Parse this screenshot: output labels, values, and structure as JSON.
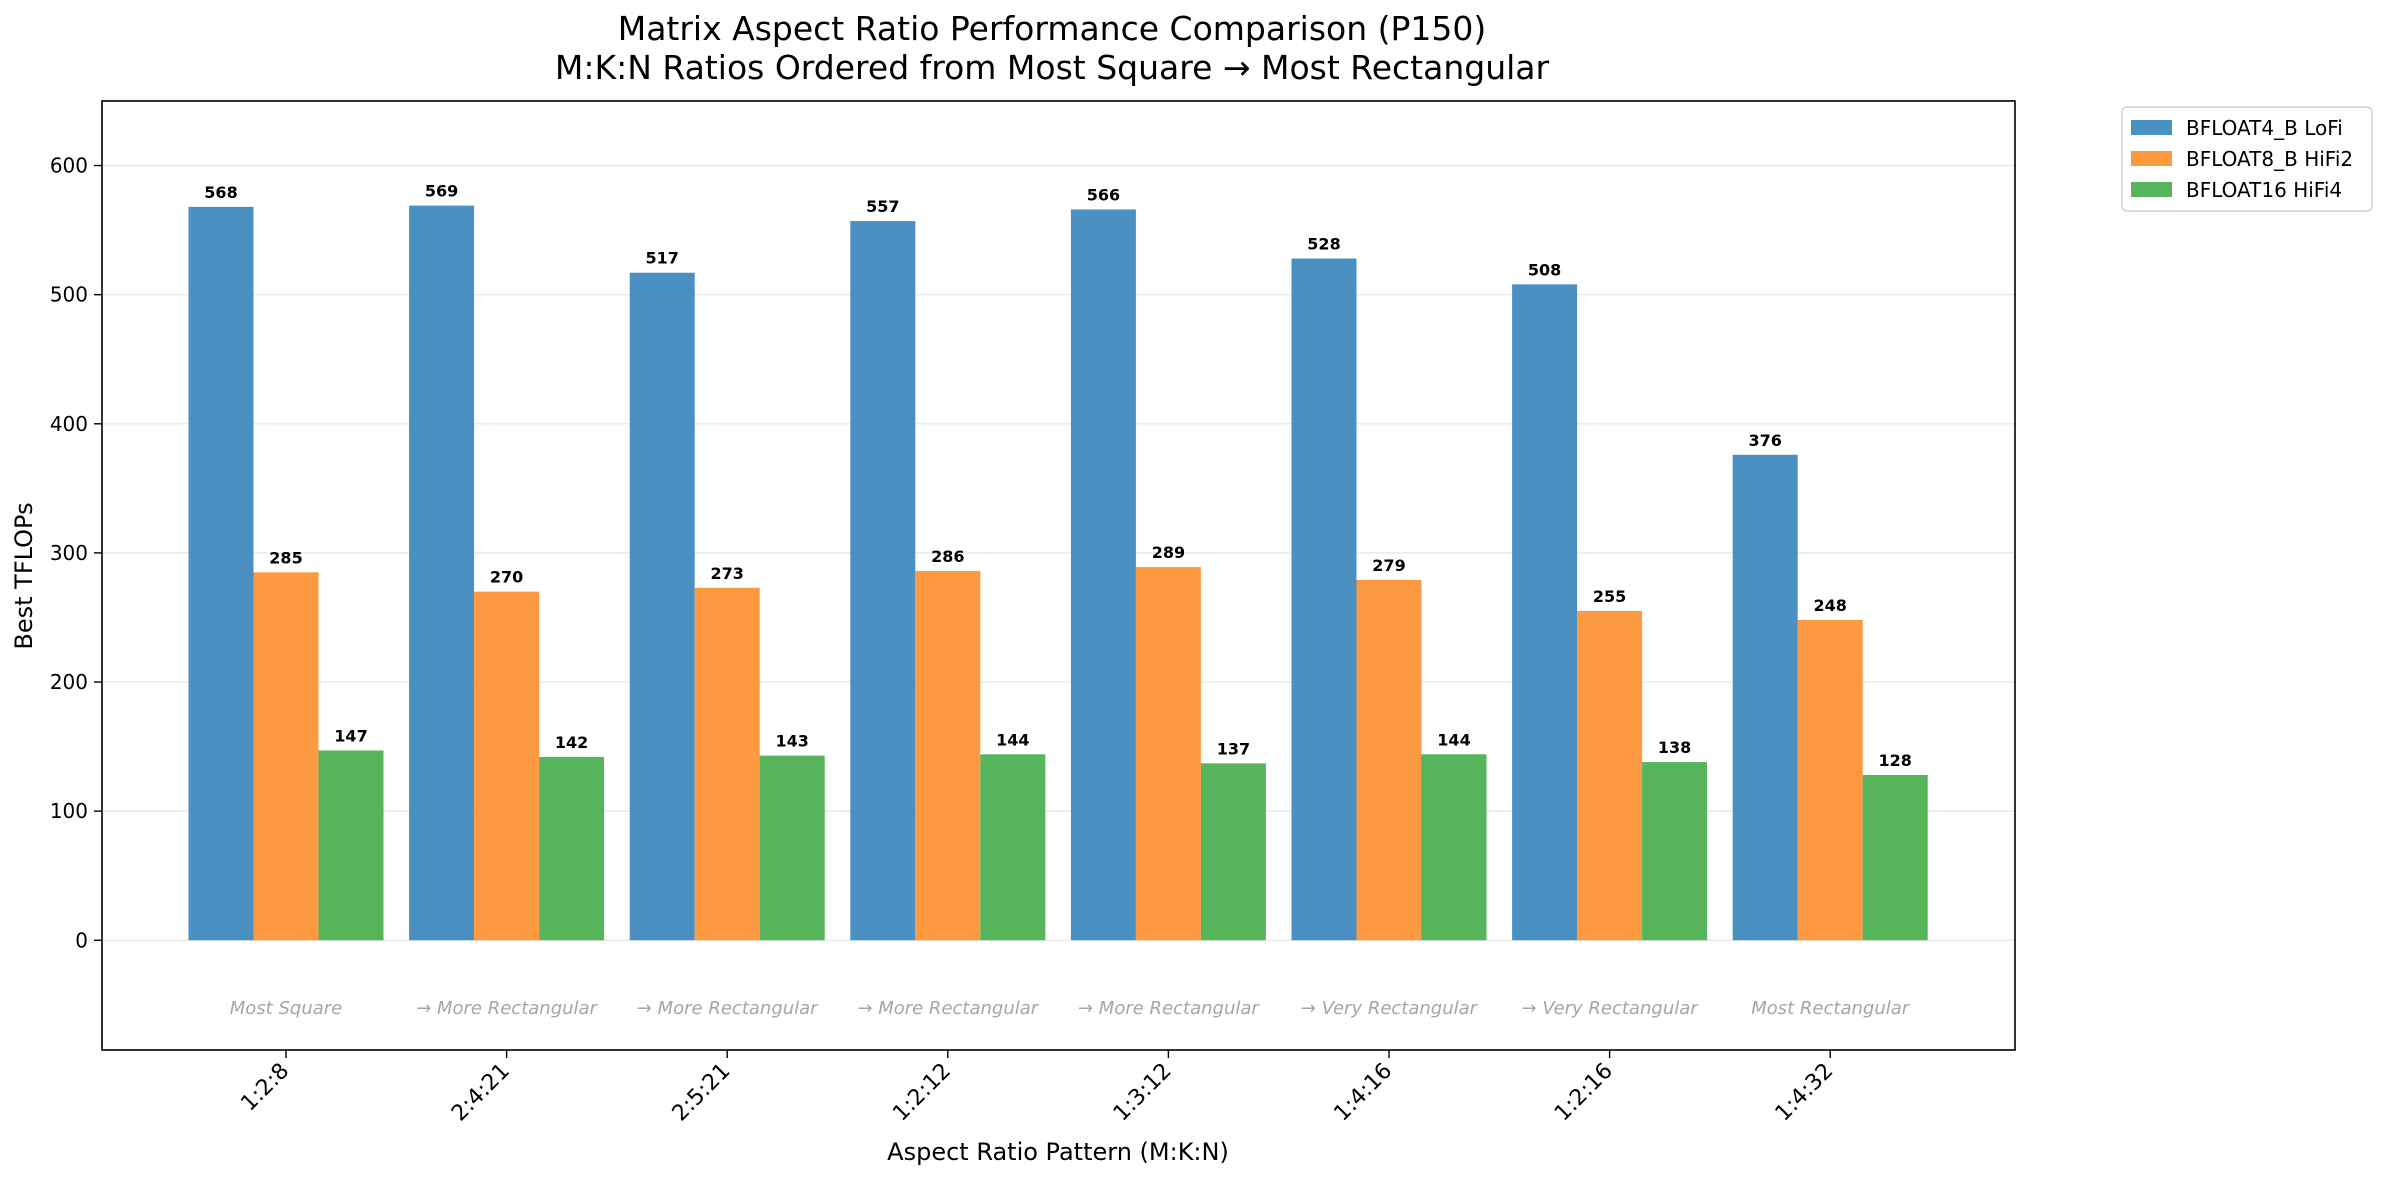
{
  "chart_data": {
    "type": "bar",
    "title": "Matrix Aspect Ratio Performance Comparison (P150)",
    "subtitle": "M:K:N Ratios Ordered from Most Square → Most Rectangular",
    "xlabel": "Aspect Ratio Pattern (M:K:N)",
    "ylabel": "Best TFLOPs",
    "ylim": [
      -85,
      650
    ],
    "yticks": [
      0,
      100,
      200,
      300,
      400,
      500,
      600
    ],
    "grid": "horizontal",
    "legend_position": "outside-top-right",
    "categories": [
      "1:2:8",
      "2:4:21",
      "2:5:21",
      "1:2:12",
      "1:3:12",
      "1:4:16",
      "1:2:16",
      "1:4:32"
    ],
    "annotations": [
      "Most Square",
      "→ More Rectangular",
      "→ More Rectangular",
      "→ More Rectangular",
      "→ More Rectangular",
      "→ Very Rectangular",
      "→ Very Rectangular",
      "Most Rectangular"
    ],
    "series": [
      {
        "name": "BFLOAT4_B LoFi",
        "color": "#4a90c3",
        "values": [
          568,
          569,
          517,
          557,
          566,
          528,
          508,
          376
        ]
      },
      {
        "name": "BFLOAT8_B HiFi2",
        "color": "#fd9940",
        "values": [
          285,
          270,
          273,
          286,
          289,
          279,
          255,
          248
        ]
      },
      {
        "name": "BFLOAT16 HiFi4",
        "color": "#56b45a",
        "values": [
          147,
          142,
          143,
          144,
          137,
          144,
          138,
          128
        ]
      }
    ]
  }
}
